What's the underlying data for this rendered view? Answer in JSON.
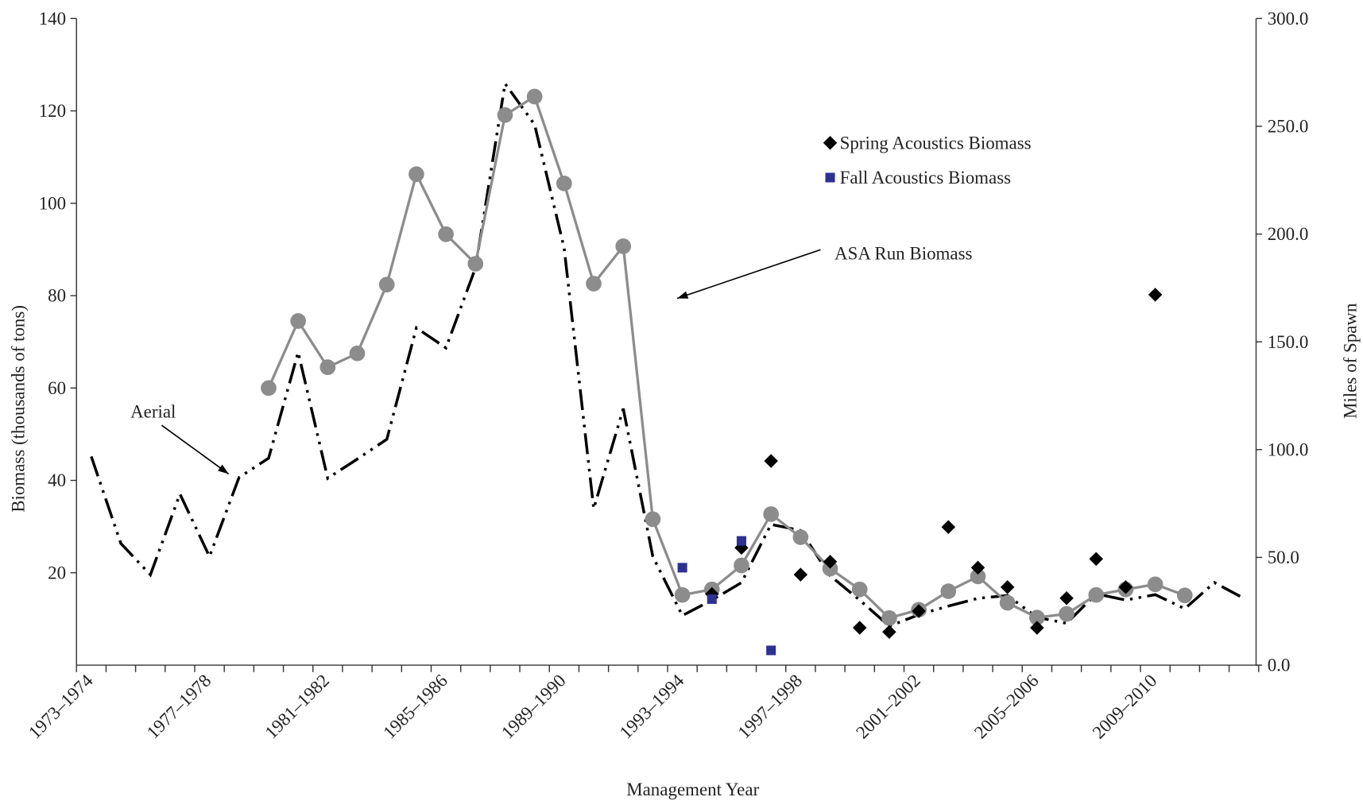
{
  "chart_data": {
    "type": "line",
    "x_label": "Management Year",
    "y_label": "Biomass (thousands of tons)",
    "y2_label": "Miles of Spawn",
    "categories": [
      "1973–1974",
      null,
      null,
      null,
      "1977–1978",
      null,
      null,
      null,
      "1981–1982",
      null,
      null,
      null,
      "1985–1986",
      null,
      null,
      null,
      "1989–1990",
      null,
      null,
      null,
      "1993–1994",
      null,
      null,
      null,
      "1997–1998",
      null,
      null,
      null,
      "2001–2002",
      null,
      null,
      null,
      "2005–2006",
      null,
      null,
      null,
      "2009–2010",
      null,
      null,
      null
    ],
    "ylim": [
      0,
      140
    ],
    "yticks": [
      20,
      40,
      60,
      80,
      100,
      120,
      140
    ],
    "y2lim": [
      0,
      300
    ],
    "y2ticks": [
      {
        "value": 0,
        "label": "0.0"
      },
      {
        "value": 50,
        "label": "50.0"
      },
      {
        "value": 100,
        "label": "100.0"
      },
      {
        "value": 150,
        "label": "150.0"
      },
      {
        "value": 200,
        "label": "200.0"
      },
      {
        "value": 250,
        "label": "250.0"
      },
      {
        "value": 300,
        "label": "300.0"
      }
    ],
    "grid": false,
    "series": [
      {
        "name": "Aerial",
        "axis": "y2",
        "color": "#000000",
        "line": "dash-dot-dot",
        "marker": null,
        "values": [
          96.8,
          56.5,
          41.9,
          79.4,
          50.4,
          87.1,
          96.0,
          145.2,
          86.7,
          95.6,
          104.8,
          156.5,
          147.2,
          184.3,
          269.8,
          250.8,
          193.5,
          72.6,
          119.0,
          50.4,
          23.0,
          30.2,
          38.3,
          65.3,
          62.5,
          41.5,
          30.2,
          18.1,
          23.4,
          27.4,
          31.0,
          32.3,
          22.2,
          19.4,
          33.1,
          30.2,
          32.7,
          26.2,
          38.3,
          31.0
        ]
      },
      {
        "name": "ASA Run Biomass",
        "color": "#8c8c8c",
        "line": "solid",
        "marker": "circle",
        "values": [
          null,
          null,
          null,
          null,
          null,
          null,
          60.0,
          74.5,
          64.5,
          67.5,
          82.4,
          106.3,
          93.3,
          86.9,
          119.1,
          123.1,
          104.3,
          82.6,
          90.7,
          31.6,
          15.2,
          16.4,
          21.6,
          32.7,
          27.7,
          20.9,
          16.4,
          10.2,
          12.0,
          16.0,
          19.2,
          13.5,
          10.3,
          11.1,
          15.2,
          16.4,
          17.5,
          15.1,
          null,
          null
        ]
      },
      {
        "name": "Spring Acoustics Biomass",
        "color": "#000000",
        "line": null,
        "marker": "diamond",
        "values": [
          null,
          null,
          null,
          null,
          null,
          null,
          null,
          null,
          null,
          null,
          null,
          null,
          null,
          null,
          null,
          null,
          null,
          null,
          null,
          null,
          null,
          15.4,
          25.4,
          44.2,
          19.6,
          22.4,
          8.1,
          7.2,
          11.7,
          29.9,
          21.1,
          16.9,
          8.1,
          14.5,
          23.0,
          16.9,
          80.2,
          null,
          null,
          null
        ]
      },
      {
        "name": "Fall Acoustics Biomass",
        "color": "#2e3192",
        "line": null,
        "marker": "square",
        "values": [
          null,
          null,
          null,
          null,
          null,
          null,
          null,
          null,
          null,
          null,
          null,
          null,
          null,
          null,
          null,
          null,
          null,
          null,
          null,
          null,
          21.1,
          14.3,
          26.9,
          3.2,
          null,
          null,
          null,
          null,
          null,
          null,
          null,
          null,
          null,
          null,
          null,
          null,
          null,
          null,
          null,
          null
        ]
      }
    ]
  }
}
